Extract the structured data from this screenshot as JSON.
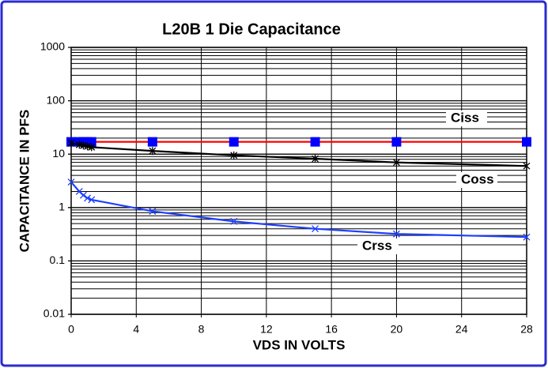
{
  "chart_data": {
    "type": "line",
    "title": "L20B 1 Die Capacitance",
    "x_label": "VDS IN VOLTS",
    "y_label": "CAPACITANCE IN PFS",
    "x": [
      0,
      0.5,
      0.75,
      1,
      1.25,
      5,
      10,
      15,
      20,
      28
    ],
    "series": [
      {
        "name": "Ciss",
        "color": "#ff0000",
        "marker": "square",
        "marker_color": "#0000ff",
        "values": [
          17,
          17,
          17,
          17,
          17,
          17,
          17,
          17,
          17,
          17
        ]
      },
      {
        "name": "Coss",
        "color": "#000000",
        "marker": "asterisk",
        "marker_color": "#000000",
        "values": [
          16,
          15,
          14.5,
          14,
          13.5,
          11.5,
          9.5,
          8.2,
          7,
          6
        ]
      },
      {
        "name": "Crss",
        "color": "#1f3fff",
        "marker": "x",
        "marker_color": "#1f3fff",
        "values": [
          3,
          2,
          1.7,
          1.5,
          1.4,
          0.85,
          0.55,
          0.4,
          0.32,
          0.28
        ]
      }
    ],
    "xlim": [
      0,
      28
    ],
    "xticks": [
      0,
      4,
      8,
      12,
      16,
      20,
      24,
      28
    ],
    "ylim": [
      0.01,
      1000
    ],
    "yticks": [
      0.01,
      0.1,
      1,
      10,
      100,
      1000
    ],
    "y_scale": "log",
    "grid": true
  }
}
